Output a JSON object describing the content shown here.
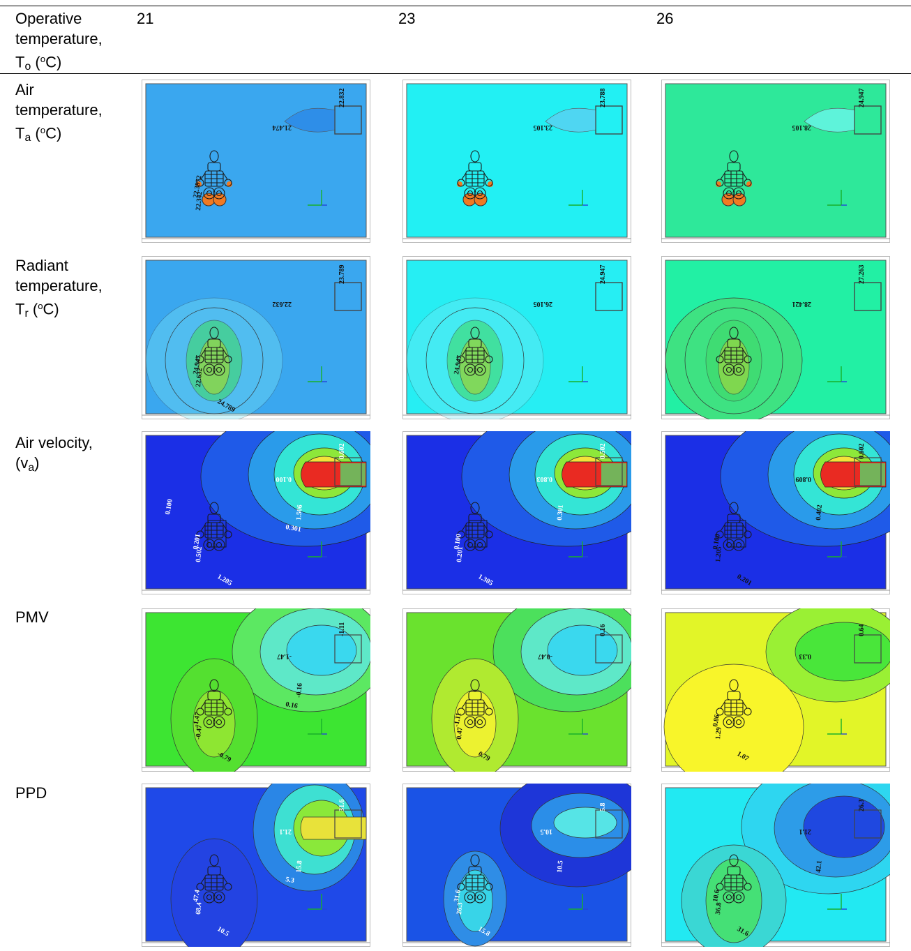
{
  "table": {
    "header": {
      "label": "Operative temperature, Tₒ (°C)",
      "label_lines": [
        "Operative",
        "temperature,",
        "T"
      ],
      "label_sub": "o",
      "label_unit": " (",
      "label_deg": "o",
      "label_unit_end": "C)",
      "columns": [
        "21",
        "23",
        "26"
      ]
    },
    "rows": [
      {
        "label_lines": [
          "Air",
          "temperature,",
          "T"
        ],
        "label_sub": "a",
        "label_unit": " (",
        "label_deg": "o",
        "label_unit_end": "C)",
        "contour_labels": [
          [
            "22.832",
            "21.474",
            "22.3972",
            "22.342"
          ],
          [
            "23.788",
            "23.105"
          ],
          [
            "24.947",
            "28.105"
          ]
        ]
      },
      {
        "label_lines": [
          "Radiant",
          "temperature,",
          "T"
        ],
        "label_sub": "r",
        "label_unit": " (",
        "label_deg": "o",
        "label_unit_end": "C)",
        "contour_labels": [
          [
            "23.789",
            "22.632",
            "24.947",
            "22.632",
            "24.789"
          ],
          [
            "24.947",
            "26.105",
            "24.947"
          ],
          [
            "27.263",
            "28.421"
          ]
        ]
      },
      {
        "label_lines": [
          "Air velocity,",
          "(v"
        ],
        "label_sub": "a",
        "label_unit": ")",
        "label_deg": "",
        "label_unit_end": "",
        "contour_labels": [
          [
            "0.602",
            "0.100",
            "0.201",
            "0.502",
            "1.205",
            "1.506",
            "0.301",
            "0.100"
          ],
          [
            "0.502",
            "0.803",
            "0.100",
            "0.201",
            "1.305",
            "0.301"
          ],
          [
            "0.602",
            "0.809",
            "0.100",
            "1.205",
            "0.201",
            "0.402"
          ]
        ]
      },
      {
        "label_lines": [
          "PMV"
        ],
        "label_sub": "",
        "label_unit": "",
        "label_deg": "",
        "label_unit_end": "",
        "contour_labels": [
          [
            "-1.11",
            "-1.47",
            "-1.47",
            "-0.47",
            "-0.79",
            "-0.16",
            "0.16"
          ],
          [
            "0.16",
            "-0.47",
            "-1.11",
            "0.47",
            "0.79"
          ],
          [
            "0.64",
            "0.33",
            "0.86",
            "1.29",
            "1.07"
          ]
        ]
      },
      {
        "label_lines": [
          "PPD"
        ],
        "label_sub": "",
        "label_unit": "",
        "label_deg": "",
        "label_unit_end": "",
        "contour_labels": [
          [
            "31.6",
            "21.1",
            "47.4",
            "68.4",
            "10.5",
            "15.8",
            "5.3"
          ],
          [
            "5.8",
            "10.5",
            "31.6",
            "26.3",
            "15.8",
            "10.5"
          ],
          [
            "26.3",
            "21.1",
            "10.6",
            "36.8",
            "31.6",
            "42.1"
          ]
        ]
      }
    ]
  },
  "colors": {
    "air_temp_bg": [
      "#3aa7ef",
      "#22f0f3",
      "#2ee89a"
    ],
    "radiant_bg": [
      "#3aa7ef",
      "#26eef3",
      "#22f0a4"
    ],
    "velocity_bg": "#1b2fe6",
    "pmv_bg": [
      "#3de532",
      "#6ae22e",
      "#e2f528"
    ],
    "ppd_bg": [
      "#1f49e8",
      "#1a53e6",
      "#22e9f2"
    ]
  }
}
